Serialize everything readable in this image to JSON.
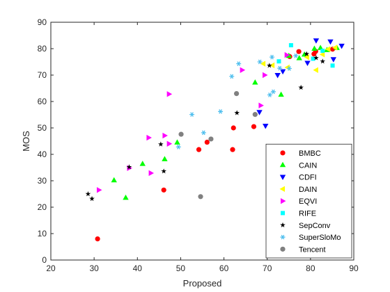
{
  "chart_data": {
    "type": "scatter",
    "title": "",
    "xlabel": "Proposed",
    "ylabel": "MOS",
    "xlim": [
      20,
      90
    ],
    "ylim": [
      0,
      90
    ],
    "xticks": [
      20,
      30,
      40,
      50,
      60,
      70,
      80,
      90
    ],
    "yticks": [
      0,
      10,
      20,
      30,
      40,
      50,
      60,
      70,
      80,
      90
    ],
    "grid": false,
    "legend_position": "bottom-right",
    "series": [
      {
        "name": "BMBC",
        "marker": "circle",
        "color": "#ff0000",
        "points": [
          [
            30.8,
            8
          ],
          [
            46.1,
            26.5
          ],
          [
            54.2,
            41.8
          ],
          [
            56.1,
            44.6
          ],
          [
            62,
            41.8
          ],
          [
            62.2,
            50
          ],
          [
            66.9,
            50.5
          ],
          [
            75.2,
            77
          ],
          [
            77.3,
            78.9
          ],
          [
            80.8,
            78
          ],
          [
            81.2,
            79
          ],
          [
            85.1,
            79.8
          ]
        ]
      },
      {
        "name": "CAIN",
        "marker": "triangle-up",
        "color": "#00ff00",
        "points": [
          [
            34.6,
            30.2
          ],
          [
            37.3,
            23.6
          ],
          [
            41.2,
            36.4
          ],
          [
            46.3,
            38.2
          ],
          [
            49.2,
            44.5
          ],
          [
            67.2,
            67.2
          ],
          [
            73.2,
            62.6
          ],
          [
            75,
            77.3
          ],
          [
            77.4,
            76.4
          ],
          [
            78.6,
            77.8
          ],
          [
            80.9,
            80
          ],
          [
            82.3,
            80.3
          ],
          [
            83.8,
            79.5
          ],
          [
            86.1,
            80.3
          ]
        ]
      },
      {
        "name": "CDFI",
        "marker": "triangle-down",
        "color": "#0000ff",
        "points": [
          [
            68.2,
            56
          ],
          [
            69.6,
            50.8
          ],
          [
            72.4,
            70
          ],
          [
            73.6,
            71.4
          ],
          [
            79.3,
            74.6
          ],
          [
            81.3,
            83.1
          ],
          [
            84.6,
            82.7
          ],
          [
            85.3,
            76
          ],
          [
            87.2,
            81.1
          ]
        ]
      },
      {
        "name": "DAIN",
        "marker": "triangle-left",
        "color": "#ffff00",
        "points": [
          [
            69.1,
            74.3
          ],
          [
            71.2,
            73.7
          ],
          [
            74.7,
            72.9
          ],
          [
            79.2,
            76.8
          ],
          [
            81.3,
            71.9
          ],
          [
            82.8,
            77.8
          ],
          [
            84.1,
            79.8
          ],
          [
            85.7,
            80.4
          ]
        ]
      },
      {
        "name": "EQVI",
        "marker": "triangle-right",
        "color": "#ff00ff",
        "points": [
          [
            31.1,
            26.5
          ],
          [
            38.1,
            34.8
          ],
          [
            42.6,
            46.3
          ],
          [
            43.1,
            32.9
          ],
          [
            46.3,
            47.1
          ],
          [
            47.3,
            62.8
          ],
          [
            47.3,
            44
          ],
          [
            64.2,
            71.9
          ],
          [
            68.5,
            58.5
          ],
          [
            69.4,
            70
          ],
          [
            74.5,
            77.6
          ]
        ]
      },
      {
        "name": "RIFE",
        "marker": "square",
        "color": "#00ffff",
        "points": [
          [
            72.7,
            75.2
          ],
          [
            75.5,
            81.3
          ],
          [
            80.6,
            76.2
          ],
          [
            82.8,
            79.2
          ],
          [
            85.1,
            73.6
          ]
        ]
      },
      {
        "name": "SepConv",
        "marker": "pentagram",
        "color": "#000000",
        "points": [
          [
            28.6,
            25
          ],
          [
            29.5,
            23.2
          ],
          [
            38.1,
            35.2
          ],
          [
            45.4,
            43.8
          ],
          [
            46.1,
            33.6
          ],
          [
            63,
            55.7
          ],
          [
            70.5,
            73.6
          ],
          [
            77.8,
            65.3
          ],
          [
            79.1,
            78
          ],
          [
            81.3,
            76.5
          ],
          [
            82.8,
            75.2
          ]
        ]
      },
      {
        "name": "SuperSloMo",
        "marker": "asterisk",
        "color": "#4dbeee",
        "points": [
          [
            49.5,
            42.8
          ],
          [
            52.6,
            55.1
          ],
          [
            55.3,
            48.2
          ],
          [
            59.2,
            56.2
          ],
          [
            61.8,
            69.5
          ],
          [
            63.4,
            74.3
          ],
          [
            68.3,
            75
          ],
          [
            70.6,
            62.5
          ],
          [
            71.4,
            63.7
          ],
          [
            72.9,
            72.6
          ],
          [
            75.1,
            72.5
          ],
          [
            76.6,
            77.3
          ],
          [
            71.1,
            76.8
          ]
        ]
      },
      {
        "name": "Tencent",
        "marker": "circle",
        "color": "#808080",
        "points": [
          [
            50.1,
            47.6
          ],
          [
            54.6,
            24
          ],
          [
            57,
            45.8
          ],
          [
            62.9,
            63
          ],
          [
            67.2,
            55.1
          ]
        ]
      }
    ]
  }
}
